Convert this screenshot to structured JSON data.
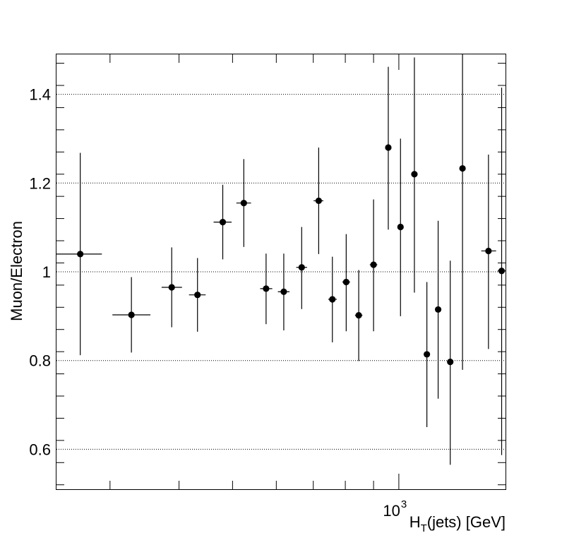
{
  "chart_data": {
    "type": "scatter",
    "title": "",
    "xlabel_main": "H",
    "xlabel_sub": "T",
    "xlabel_rest": "(jets) [GeV]",
    "ylabel": "Muon/Electron",
    "x_scale": "log",
    "xlim": [
      240,
      1560
    ],
    "ylim": [
      0.51,
      1.49
    ],
    "y_ticks": [
      0.6,
      0.8,
      1.0,
      1.2,
      1.4
    ],
    "y_tick_labels": [
      "0.6",
      "0.8",
      "1",
      "1.2",
      "1.4"
    ],
    "x_tick_label_base": "10",
    "x_tick_label_exp": "3",
    "x_tick_label_value": 1000,
    "grid_y": true,
    "marker_color": "#000000",
    "points": [
      {
        "x": 265,
        "xlo": 240,
        "xhi": 290,
        "y": 1.04,
        "ylo": 0.812,
        "yhi": 1.268
      },
      {
        "x": 328,
        "xlo": 303,
        "xhi": 355,
        "y": 0.903,
        "ylo": 0.818,
        "yhi": 0.988
      },
      {
        "x": 388,
        "xlo": 372,
        "xhi": 405,
        "y": 0.965,
        "ylo": 0.875,
        "yhi": 1.055
      },
      {
        "x": 432,
        "xlo": 417,
        "xhi": 447,
        "y": 0.948,
        "ylo": 0.865,
        "yhi": 1.031
      },
      {
        "x": 480,
        "xlo": 462,
        "xhi": 498,
        "y": 1.112,
        "ylo": 1.028,
        "yhi": 1.196
      },
      {
        "x": 524,
        "xlo": 508,
        "xhi": 540,
        "y": 1.155,
        "ylo": 1.056,
        "yhi": 1.254
      },
      {
        "x": 575,
        "xlo": 561,
        "xhi": 590,
        "y": 0.962,
        "ylo": 0.882,
        "yhi": 1.041
      },
      {
        "x": 619,
        "xlo": 604,
        "xhi": 634,
        "y": 0.955,
        "ylo": 0.868,
        "yhi": 1.041
      },
      {
        "x": 667,
        "xlo": 652,
        "xhi": 682,
        "y": 1.01,
        "ylo": 0.916,
        "yhi": 1.101
      },
      {
        "x": 716,
        "xlo": 701,
        "xhi": 730,
        "y": 1.16,
        "ylo": 1.04,
        "yhi": 1.28
      },
      {
        "x": 758,
        "xlo": 745,
        "xhi": 772,
        "y": 0.938,
        "ylo": 0.841,
        "yhi": 1.034
      },
      {
        "x": 803,
        "xlo": 790,
        "xhi": 816,
        "y": 0.977,
        "ylo": 0.866,
        "yhi": 1.085
      },
      {
        "x": 846,
        "xlo": 833,
        "xhi": 859,
        "y": 0.902,
        "ylo": 0.799,
        "yhi": 1.004
      },
      {
        "x": 900,
        "xlo": 886,
        "xhi": 914,
        "y": 1.016,
        "ylo": 0.866,
        "yhi": 1.163
      },
      {
        "x": 957,
        "xlo": 945,
        "xhi": 968,
        "y": 1.28,
        "ylo": 1.095,
        "yhi": 1.462
      },
      {
        "x": 1007,
        "xlo": 996,
        "xhi": 1018,
        "y": 1.101,
        "ylo": 0.9,
        "yhi": 1.3
      },
      {
        "x": 1067,
        "xlo": 1055,
        "xhi": 1079,
        "y": 1.22,
        "ylo": 0.953,
        "yhi": 1.483
      },
      {
        "x": 1124,
        "xlo": 1118,
        "xhi": 1130,
        "y": 0.814,
        "ylo": 0.65,
        "yhi": 0.977
      },
      {
        "x": 1178,
        "xlo": 1172,
        "xhi": 1184,
        "y": 0.915,
        "ylo": 0.714,
        "yhi": 1.115
      },
      {
        "x": 1239,
        "xlo": 1233,
        "xhi": 1245,
        "y": 0.797,
        "ylo": 0.565,
        "yhi": 1.025
      },
      {
        "x": 1304,
        "xlo": 1290,
        "xhi": 1318,
        "y": 1.233,
        "ylo": 0.779,
        "yhi": 1.49
      },
      {
        "x": 1453,
        "xlo": 1410,
        "xhi": 1500,
        "y": 1.047,
        "ylo": 0.826,
        "yhi": 1.264
      },
      {
        "x": 1535,
        "xlo": 1510,
        "xhi": 1560,
        "y": 1.002,
        "ylo": 0.587,
        "yhi": 1.415
      }
    ]
  }
}
